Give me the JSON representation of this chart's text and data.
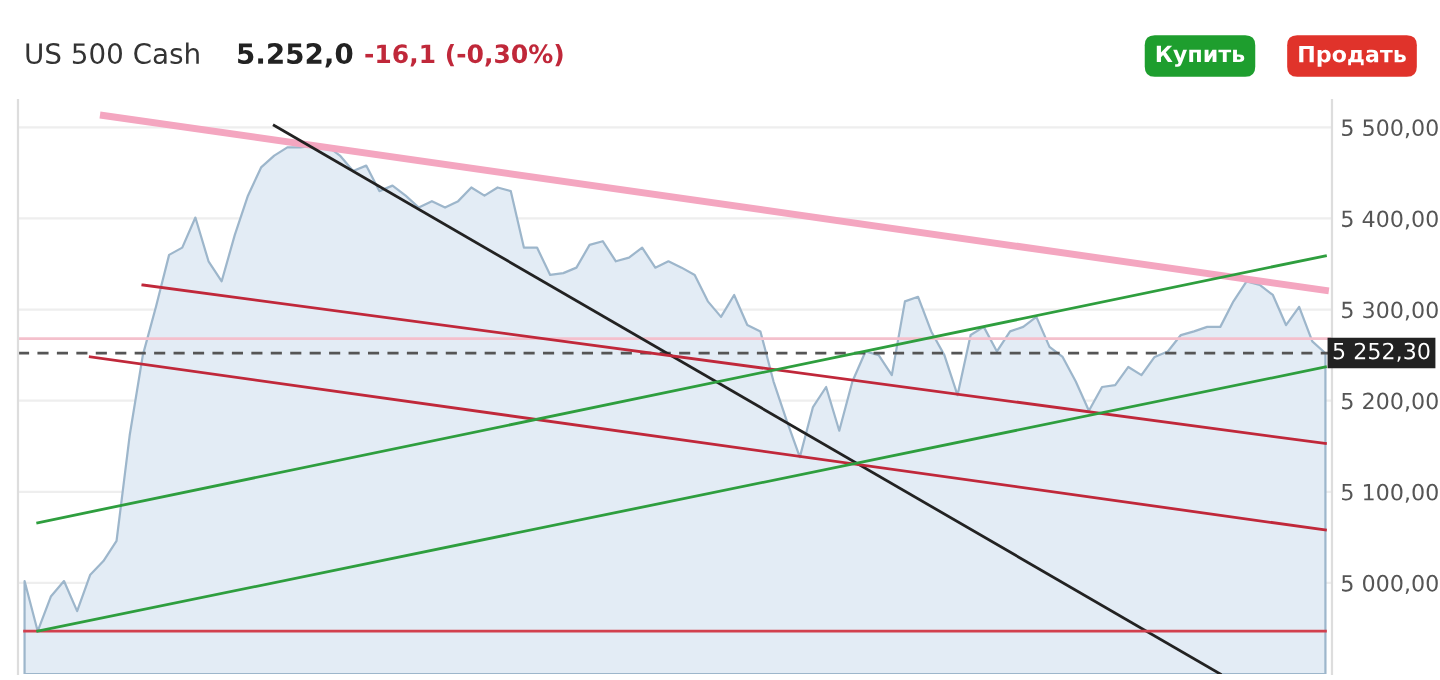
{
  "chart_data": {
    "type": "area",
    "title": "US 500 Cash",
    "annotations": [
      "5.252,0",
      "-16,1 (-0,30%)",
      "Купить",
      "Продать"
    ],
    "categories": [
      null,
      null,
      null,
      null,
      null,
      null,
      null,
      null,
      null,
      null,
      null,
      null,
      null,
      null,
      null,
      null,
      null,
      null,
      null,
      null,
      null,
      null,
      null,
      null,
      null,
      null,
      null,
      null,
      null,
      null,
      null,
      null,
      null,
      null,
      null,
      null,
      null,
      null,
      null,
      null,
      null,
      null,
      null,
      null,
      null,
      null,
      null,
      null,
      null,
      null,
      null,
      null,
      null,
      null,
      null,
      null,
      null,
      null,
      null,
      null,
      null,
      null,
      null,
      null,
      null,
      null,
      null,
      null,
      null,
      null,
      null,
      null,
      null,
      null,
      null,
      null,
      null,
      null,
      null,
      null,
      null,
      null,
      null,
      null,
      null,
      null,
      null,
      null,
      null,
      null,
      null,
      null,
      null,
      null,
      null,
      null,
      null,
      null,
      null,
      null
    ],
    "ylim": [
      4900,
      5530
    ],
    "yticks": [
      {
        "value": 5000,
        "label": "5 000,00"
      },
      {
        "value": 5100,
        "label": "5 100,00"
      },
      {
        "value": 5200,
        "label": "5 200,00"
      },
      {
        "value": 5300,
        "label": "5 300,00"
      },
      {
        "value": 5400,
        "label": "5 400,00"
      },
      {
        "value": 5500,
        "label": "5 500,00"
      }
    ],
    "tick_labels": "y",
    "grid": "y",
    "ref_lines": [
      {
        "axis": "y",
        "value": 5252.3,
        "label": "5 252,30",
        "color": "#555555",
        "line_style": "dashed"
      },
      {
        "axis": "y",
        "value": 5268,
        "label": null,
        "color": "#f4c0cc",
        "line_style": "solid"
      }
    ],
    "series": [
      {
        "color": "#9db6cb",
        "values": [
          5002,
          4947,
          4985,
          5002,
          4969,
          5009,
          5024,
          5046,
          5162,
          5250,
          5303,
          5360,
          5368,
          5401,
          5353,
          5331,
          5382,
          5425,
          5456,
          5469,
          5478,
          5478,
          5480,
          5480,
          5469,
          5452,
          5458,
          5430,
          5436,
          5425,
          5412,
          5419,
          5412,
          5419,
          5434,
          5425,
          5434,
          5430,
          5368,
          5368,
          5338,
          5340,
          5346,
          5371,
          5375,
          5353,
          5357,
          5368,
          5346,
          5353,
          5346,
          5338,
          5309,
          5292,
          5316,
          5283,
          5276,
          5221,
          5178,
          5138,
          5193,
          5215,
          5167,
          5221,
          5254,
          5250,
          5228,
          5309,
          5314,
          5276,
          5250,
          5206,
          5272,
          5281,
          5254,
          5276,
          5281,
          5292,
          5259,
          5248,
          5221,
          5189,
          5215,
          5217,
          5237,
          5228,
          5248,
          5254,
          5272,
          5276,
          5281,
          5281,
          5309,
          5331,
          5327,
          5316,
          5283,
          5303,
          5265,
          5252
        ]
      },
      {
        "type": "line",
        "color": "#f4a6c0",
        "values": [
          null,
          null,
          null,
          null,
          null,
          null,
          5513,
          null,
          null,
          null,
          null,
          null,
          null,
          null,
          null,
          null,
          null,
          null,
          null,
          null,
          null,
          null,
          null,
          null,
          null,
          null,
          null,
          null,
          null,
          null,
          null,
          null,
          null,
          null,
          null,
          null,
          null,
          null,
          null,
          null,
          null,
          null,
          null,
          null,
          null,
          null,
          null,
          null,
          null,
          null,
          null,
          null,
          null,
          null,
          null,
          null,
          null,
          null,
          null,
          null,
          null,
          null,
          null,
          null,
          null,
          null,
          null,
          null,
          null,
          null,
          null,
          null,
          null,
          null,
          null,
          null,
          null,
          null,
          null,
          null,
          null,
          null,
          null,
          null,
          null,
          null,
          null,
          null,
          null,
          null,
          null,
          null,
          null,
          null,
          null,
          null,
          null,
          null,
          null,
          5321
        ]
      },
      {
        "type": "line",
        "color": "#222222",
        "values": [
          null,
          null,
          null,
          null,
          null,
          null,
          null,
          null,
          null,
          null,
          null,
          null,
          null,
          null,
          null,
          null,
          null,
          null,
          null,
          5502,
          null,
          null,
          null,
          null,
          null,
          null,
          null,
          null,
          null,
          null,
          null,
          null,
          null,
          null,
          null,
          null,
          null,
          null,
          null,
          null,
          null,
          null,
          null,
          null,
          null,
          null,
          null,
          null,
          null,
          null,
          null,
          null,
          null,
          null,
          null,
          null,
          null,
          null,
          null,
          null,
          null,
          null,
          null,
          null,
          null,
          null,
          null,
          null,
          null,
          null,
          null,
          null,
          null,
          null,
          null,
          null,
          null,
          null,
          null,
          null,
          null,
          null,
          null,
          null,
          null,
          null,
          null,
          null,
          null,
          null,
          null,
          4900,
          null,
          null,
          null,
          null,
          null,
          null,
          null,
          null
        ]
      },
      {
        "type": "line",
        "color": "#c0283a",
        "values": [
          null,
          null,
          null,
          null,
          null,
          null,
          null,
          null,
          null,
          5327,
          null,
          null,
          null,
          null,
          null,
          null,
          null,
          null,
          null,
          null,
          null,
          null,
          null,
          null,
          null,
          null,
          null,
          null,
          null,
          null,
          null,
          null,
          null,
          null,
          null,
          null,
          null,
          null,
          null,
          null,
          null,
          null,
          null,
          null,
          null,
          null,
          null,
          null,
          null,
          null,
          null,
          null,
          null,
          null,
          null,
          null,
          null,
          null,
          null,
          null,
          null,
          null,
          null,
          null,
          null,
          null,
          null,
          null,
          null,
          null,
          null,
          null,
          null,
          null,
          null,
          null,
          null,
          null,
          null,
          null,
          null,
          null,
          null,
          null,
          null,
          null,
          null,
          null,
          null,
          null,
          null,
          null,
          null,
          null,
          null,
          null,
          null,
          null,
          null,
          5153
        ]
      },
      {
        "type": "line",
        "color": "#c0283a",
        "values": [
          null,
          null,
          null,
          null,
          null,
          5248,
          null,
          null,
          null,
          null,
          null,
          null,
          null,
          null,
          null,
          null,
          null,
          null,
          null,
          null,
          null,
          null,
          null,
          null,
          null,
          null,
          null,
          null,
          null,
          null,
          null,
          null,
          null,
          null,
          null,
          null,
          null,
          null,
          null,
          null,
          null,
          null,
          null,
          null,
          null,
          null,
          null,
          null,
          null,
          null,
          null,
          null,
          null,
          null,
          null,
          null,
          null,
          null,
          null,
          null,
          null,
          null,
          null,
          null,
          null,
          null,
          null,
          null,
          null,
          null,
          null,
          null,
          null,
          null,
          null,
          null,
          null,
          null,
          null,
          null,
          null,
          null,
          null,
          null,
          null,
          null,
          null,
          null,
          null,
          null,
          null,
          null,
          null,
          null,
          null,
          null,
          null,
          null,
          null,
          5058
        ]
      },
      {
        "type": "line",
        "color": "#d2404e",
        "values": [
          4947,
          null,
          null,
          null,
          null,
          null,
          null,
          null,
          null,
          null,
          null,
          null,
          null,
          null,
          null,
          null,
          null,
          null,
          null,
          null,
          null,
          null,
          null,
          null,
          null,
          null,
          null,
          null,
          null,
          null,
          null,
          null,
          null,
          null,
          null,
          null,
          null,
          null,
          null,
          null,
          null,
          null,
          null,
          null,
          null,
          null,
          null,
          null,
          null,
          null,
          null,
          null,
          null,
          null,
          null,
          null,
          null,
          null,
          null,
          null,
          null,
          null,
          null,
          null,
          null,
          null,
          null,
          null,
          null,
          null,
          null,
          null,
          null,
          null,
          null,
          null,
          null,
          null,
          null,
          null,
          null,
          null,
          null,
          null,
          null,
          null,
          null,
          null,
          null,
          null,
          null,
          null,
          null,
          null,
          null,
          null,
          null,
          null,
          null,
          4947
        ]
      },
      {
        "type": "line",
        "color": "#2e9e3e",
        "values": [
          null,
          5066,
          null,
          null,
          null,
          null,
          null,
          null,
          null,
          null,
          null,
          null,
          null,
          null,
          null,
          null,
          null,
          null,
          null,
          null,
          null,
          null,
          null,
          null,
          null,
          null,
          null,
          null,
          null,
          null,
          null,
          null,
          null,
          null,
          null,
          null,
          null,
          null,
          null,
          null,
          null,
          null,
          null,
          null,
          null,
          null,
          null,
          null,
          null,
          null,
          null,
          null,
          null,
          null,
          null,
          null,
          null,
          null,
          null,
          null,
          null,
          null,
          null,
          null,
          null,
          null,
          null,
          null,
          null,
          null,
          null,
          null,
          null,
          null,
          null,
          null,
          null,
          null,
          null,
          null,
          null,
          null,
          null,
          null,
          null,
          null,
          null,
          null,
          null,
          null,
          null,
          null,
          null,
          null,
          null,
          null,
          null,
          null,
          null,
          5359
        ]
      },
      {
        "type": "line",
        "color": "#2e9e3e",
        "values": [
          null,
          4947,
          null,
          null,
          null,
          null,
          null,
          null,
          null,
          null,
          null,
          null,
          null,
          null,
          null,
          null,
          null,
          null,
          null,
          null,
          null,
          null,
          null,
          null,
          null,
          null,
          null,
          null,
          null,
          null,
          null,
          null,
          null,
          null,
          null,
          null,
          null,
          null,
          null,
          null,
          null,
          null,
          null,
          null,
          null,
          null,
          null,
          null,
          null,
          null,
          null,
          null,
          null,
          null,
          null,
          null,
          null,
          null,
          null,
          null,
          null,
          null,
          null,
          null,
          null,
          null,
          null,
          null,
          null,
          null,
          null,
          null,
          null,
          null,
          null,
          null,
          null,
          null,
          null,
          null,
          null,
          null,
          null,
          null,
          null,
          null,
          null,
          null,
          null,
          null,
          null,
          null,
          null,
          null,
          null,
          null,
          null,
          null,
          null,
          5237
        ]
      }
    ]
  }
}
